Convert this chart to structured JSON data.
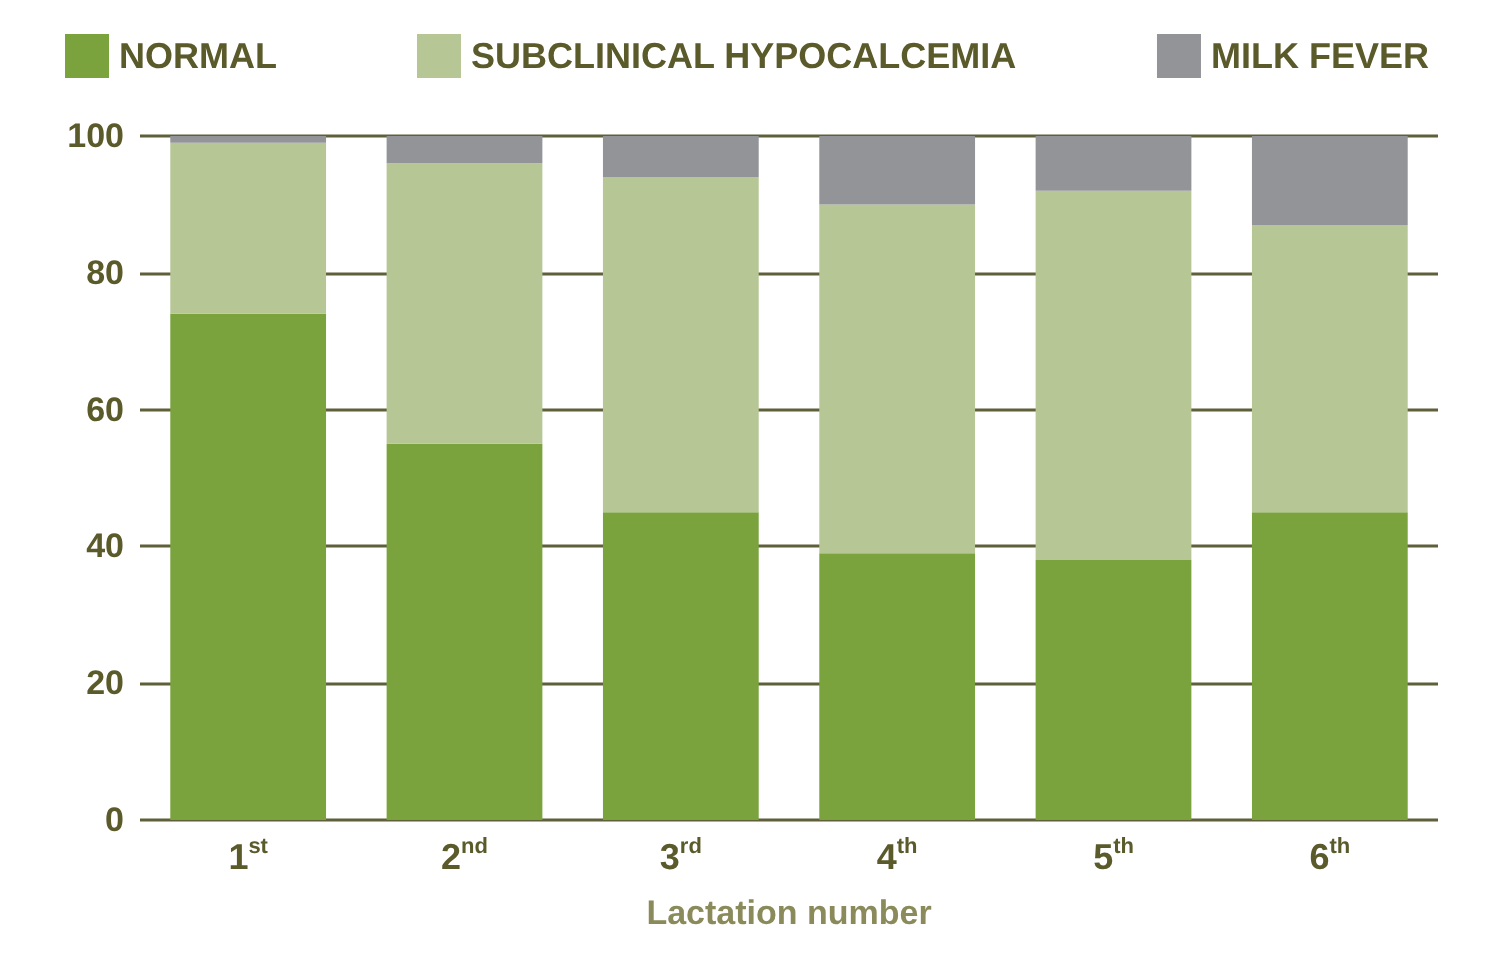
{
  "chart_data": {
    "type": "bar",
    "stacked": true,
    "xlabel": "Lactation number",
    "categories": [
      "1$^{st}$",
      "2$^{nd}$",
      "3$^{rd}$",
      "4$^{th}$",
      "5$^{th}$",
      "6$^{th}$"
    ],
    "series": [
      {
        "name": "NORMAL",
        "color": "#7aa33e",
        "values": [
          74,
          55,
          45,
          39,
          38,
          45
        ]
      },
      {
        "name": "SUBCLINICAL HYPOCALCEMIA",
        "color": "#b6c795",
        "values": [
          25,
          41,
          49,
          51,
          54,
          42
        ]
      },
      {
        "name": "MILK FEVER",
        "color": "#939498",
        "values": [
          1,
          4,
          6,
          10,
          8,
          13
        ]
      }
    ],
    "ylim": [
      0,
      100
    ],
    "yticks": [
      0,
      20,
      40,
      60,
      80,
      100
    ],
    "grid": "y",
    "legend": "top"
  }
}
